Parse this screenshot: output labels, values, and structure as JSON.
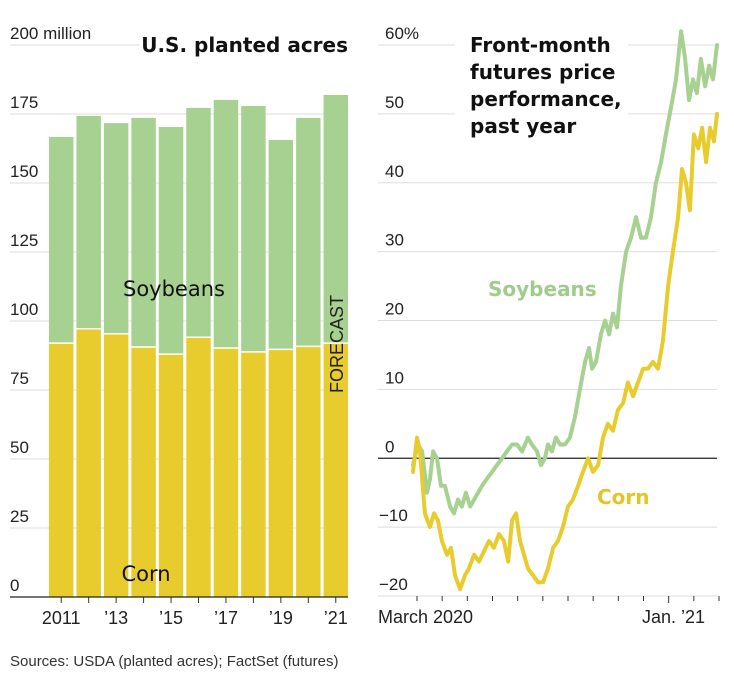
{
  "colors": {
    "corn": "#E8CC2E",
    "soybeans": "#A6D191",
    "soy_label": "#9FCC8A",
    "corn_label": "#E2C527"
  },
  "source": "Sources: USDA (planted acres); FactSet (futures)",
  "chart_data": [
    {
      "type": "bar",
      "stacked": true,
      "title": "U.S. planted acres",
      "ylabel": "",
      "ylim": [
        0,
        200
      ],
      "yticks": [
        0,
        25,
        50,
        75,
        100,
        125,
        150,
        175,
        200
      ],
      "ytick_labels": [
        "0",
        "25",
        "50",
        "75",
        "100",
        "125",
        "150",
        "175",
        "200 million"
      ],
      "categories": [
        "2011",
        "2012",
        "2013",
        "2014",
        "2015",
        "2016",
        "2017",
        "2018",
        "2019",
        "2020",
        "2021"
      ],
      "xtick_labels": [
        "2011",
        "",
        "’13",
        "",
        "’15",
        "",
        "’17",
        "",
        "’19",
        "",
        "’21"
      ],
      "series": [
        {
          "name": "Corn",
          "values": [
            92.0,
            97.2,
            95.4,
            90.6,
            88.0,
            94.1,
            90.2,
            88.8,
            89.7,
            90.8,
            92.0
          ]
        },
        {
          "name": "Soybeans",
          "values": [
            74.7,
            77.1,
            76.3,
            83.0,
            82.3,
            83.1,
            89.9,
            89.1,
            75.9,
            82.8,
            89.9
          ]
        }
      ],
      "annotations": [
        "Soybeans",
        "Corn",
        "FORECAST"
      ],
      "forecast_category": "2021",
      "grid": true
    },
    {
      "type": "line",
      "title": "Front-month futures price performance, past year",
      "title_lines": [
        "Front-month",
        "futures price",
        "performance,",
        "past year"
      ],
      "ylim": [
        -20,
        60
      ],
      "yticks": [
        -20,
        -10,
        0,
        10,
        20,
        30,
        40,
        50,
        60
      ],
      "ytick_labels": [
        "−20",
        "−10",
        "0",
        "10",
        "20",
        "30",
        "40",
        "50",
        "60%"
      ],
      "xlabels": [
        "March 2020",
        "Jan. ’21"
      ],
      "x_domain": [
        "2020-03",
        "2021-03"
      ],
      "num_month_ticks": 13,
      "grid": true,
      "series": [
        {
          "name": "Soybeans",
          "x": [
            0,
            0.016,
            0.03,
            0.046,
            0.056,
            0.066,
            0.079,
            0.092,
            0.105,
            0.122,
            0.135,
            0.148,
            0.161,
            0.174,
            0.188,
            0.201,
            0.214,
            0.227,
            0.243,
            0.26,
            0.276,
            0.293,
            0.309,
            0.326,
            0.342,
            0.359,
            0.378,
            0.391,
            0.408,
            0.421,
            0.434,
            0.444,
            0.457,
            0.47,
            0.484,
            0.5,
            0.516,
            0.533,
            0.549,
            0.566,
            0.579,
            0.589,
            0.602,
            0.618,
            0.632,
            0.645,
            0.658,
            0.671,
            0.684,
            0.701,
            0.717,
            0.734,
            0.75,
            0.766,
            0.783,
            0.799,
            0.816,
            0.832,
            0.849,
            0.865,
            0.882,
            0.895,
            0.908,
            0.921,
            0.934,
            0.947,
            0.961,
            0.974,
            0.987,
            1.0
          ],
          "values": [
            -1,
            2,
            1,
            -5,
            -3,
            1,
            0,
            -4,
            -4,
            -7,
            -8,
            -6,
            -7,
            -5,
            -7,
            -6,
            -5,
            -4,
            -3,
            -2,
            -1,
            0,
            1,
            2,
            2,
            1,
            3,
            2,
            1,
            -1,
            0,
            2,
            1,
            3,
            2,
            2,
            3,
            6,
            10,
            14,
            16,
            13,
            14,
            18,
            20,
            18,
            21,
            19,
            25,
            30,
            32,
            35,
            32,
            32,
            35,
            40,
            43,
            47,
            51,
            55,
            62,
            58,
            52,
            55,
            53,
            58,
            54,
            57,
            55,
            60
          ]
        },
        {
          "name": "Corn",
          "x": [
            0,
            0.013,
            0.023,
            0.039,
            0.056,
            0.069,
            0.082,
            0.095,
            0.112,
            0.125,
            0.138,
            0.155,
            0.171,
            0.184,
            0.201,
            0.217,
            0.25,
            0.266,
            0.283,
            0.299,
            0.313,
            0.326,
            0.339,
            0.352,
            0.365,
            0.378,
            0.395,
            0.411,
            0.428,
            0.444,
            0.461,
            0.477,
            0.493,
            0.51,
            0.526,
            0.543,
            0.559,
            0.576,
            0.592,
            0.609,
            0.625,
            0.641,
            0.658,
            0.674,
            0.691,
            0.707,
            0.724,
            0.74,
            0.757,
            0.773,
            0.789,
            0.806,
            0.822,
            0.839,
            0.855,
            0.872,
            0.885,
            0.898,
            0.911,
            0.924,
            0.938,
            0.951,
            0.964,
            0.977,
            0.99,
            1.0
          ],
          "values": [
            -2,
            3,
            1,
            -8,
            -10,
            -8,
            -9,
            -12,
            -14,
            -13,
            -17,
            -19,
            -17,
            -16,
            -14,
            -15,
            -12,
            -13,
            -11,
            -12,
            -15,
            -9,
            -8,
            -12,
            -14,
            -16,
            -17,
            -18,
            -18,
            -16,
            -13,
            -12,
            -10,
            -7,
            -6,
            -4,
            -2,
            0,
            -2,
            -1,
            3,
            5,
            4,
            7,
            8,
            11,
            9,
            11,
            13,
            13,
            14,
            13,
            17,
            25,
            30,
            35,
            42,
            40,
            36,
            47,
            45,
            48,
            43,
            48,
            46,
            50
          ]
        }
      ],
      "annotations": [
        "Soybeans",
        "Corn"
      ]
    }
  ]
}
